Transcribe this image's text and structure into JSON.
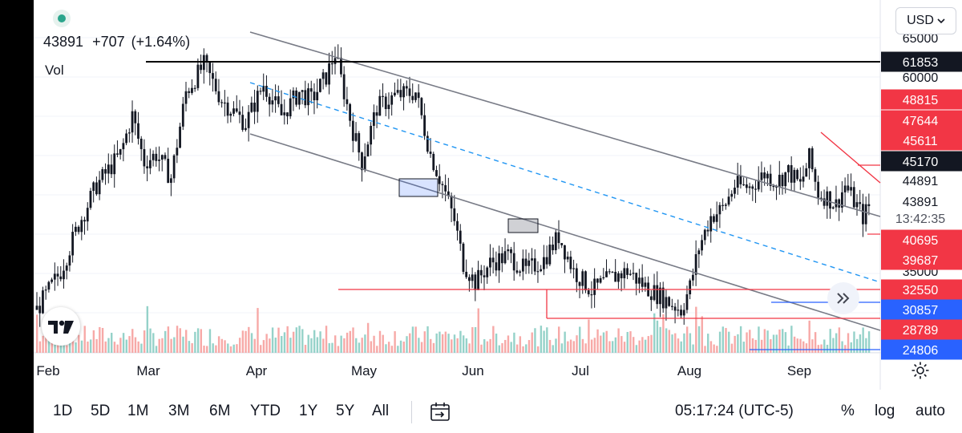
{
  "header": {
    "price": "43891",
    "change": "+707",
    "change_pct": "(+1.64%)",
    "volume_label": "Vol",
    "currency": "USD"
  },
  "price_axis": {
    "ticks": [
      "65000",
      "60000",
      "44891",
      "43891",
      "35000"
    ],
    "countdown": "13:42:35",
    "badges": [
      {
        "value": "61853",
        "bg": "#131722"
      },
      {
        "value": "48815",
        "bg": "#f23645"
      },
      {
        "value": "47644",
        "bg": "#f23645"
      },
      {
        "value": "45611",
        "bg": "#f23645"
      },
      {
        "value": "45170",
        "bg": "#131722"
      },
      {
        "value": "40695",
        "bg": "#f23645"
      },
      {
        "value": "39687",
        "bg": "#f23645"
      },
      {
        "value": "32550",
        "bg": "#f23645"
      },
      {
        "value": "30857",
        "bg": "#2962ff"
      },
      {
        "value": "28789",
        "bg": "#f23645"
      },
      {
        "value": "24806",
        "bg": "#2962ff"
      }
    ]
  },
  "time_axis": {
    "labels": [
      "Feb",
      "Mar",
      "Apr",
      "May",
      "Jun",
      "Jul",
      "Aug",
      "Sep"
    ]
  },
  "toolbar": {
    "timeframes": [
      "1D",
      "5D",
      "1M",
      "3M",
      "6M",
      "YTD",
      "1Y",
      "5Y",
      "All"
    ],
    "clock": "05:17:24 (UTC-5)",
    "percent": "%",
    "log": "log",
    "auto": "auto"
  },
  "icons": {
    "logo": "tradingview-logo",
    "scroll": "chevron-double-right-icon",
    "settings": "gear-icon",
    "date_range": "calendar-range-icon",
    "currency_caret": "chevron-down-icon"
  },
  "colors": {
    "up": "#131722",
    "down": "#131722",
    "vol_up": "#95d2c9",
    "vol_down": "#f7a9a7",
    "channel": "#787b86",
    "mid_line": "#2196f3",
    "support": "#f23645",
    "hline": "#000000"
  },
  "chart_data": {
    "type": "candlestick",
    "symbol_price": 43891,
    "y_range": [
      23000,
      67000
    ],
    "price_path": [
      [
        0,
        30000
      ],
      [
        8,
        35000
      ],
      [
        14,
        41000
      ],
      [
        20,
        46000
      ],
      [
        28,
        50000
      ],
      [
        32,
        55000
      ],
      [
        36,
        49000
      ],
      [
        40,
        50000
      ],
      [
        45,
        47000
      ],
      [
        50,
        58000
      ],
      [
        56,
        61500
      ],
      [
        62,
        57000
      ],
      [
        70,
        54000
      ],
      [
        76,
        59000
      ],
      [
        82,
        55000
      ],
      [
        88,
        58000
      ],
      [
        92,
        57000
      ],
      [
        97,
        60000
      ],
      [
        100,
        63000
      ],
      [
        103,
        58000
      ],
      [
        106,
        53000
      ],
      [
        109,
        49000
      ],
      [
        114,
        56000
      ],
      [
        120,
        57500
      ],
      [
        127,
        58000
      ],
      [
        132,
        50000
      ],
      [
        137,
        45000
      ],
      [
        140,
        41500
      ],
      [
        143,
        36000
      ],
      [
        147,
        33500
      ],
      [
        152,
        36000
      ],
      [
        158,
        37000
      ],
      [
        164,
        35000
      ],
      [
        170,
        36500
      ],
      [
        175,
        39500
      ],
      [
        180,
        35000
      ],
      [
        186,
        32500
      ],
      [
        192,
        34000
      ],
      [
        198,
        35000
      ],
      [
        204,
        33000
      ],
      [
        210,
        31500
      ],
      [
        216,
        30000
      ],
      [
        219,
        33000
      ],
      [
        222,
        38000
      ],
      [
        226,
        42000
      ],
      [
        230,
        43000
      ],
      [
        234,
        46000
      ],
      [
        239,
        45800
      ],
      [
        244,
        47500
      ],
      [
        248,
        46500
      ],
      [
        252,
        47800
      ],
      [
        256,
        46000
      ],
      [
        259,
        49500
      ],
      [
        262,
        45000
      ],
      [
        265,
        44500
      ],
      [
        268,
        43500
      ],
      [
        271,
        46000
      ],
      [
        274,
        44000
      ],
      [
        277,
        42000
      ],
      [
        280,
        43891
      ]
    ],
    "horizontal_levels": [
      61853,
      45170,
      32550,
      28789,
      24806
    ]
  }
}
